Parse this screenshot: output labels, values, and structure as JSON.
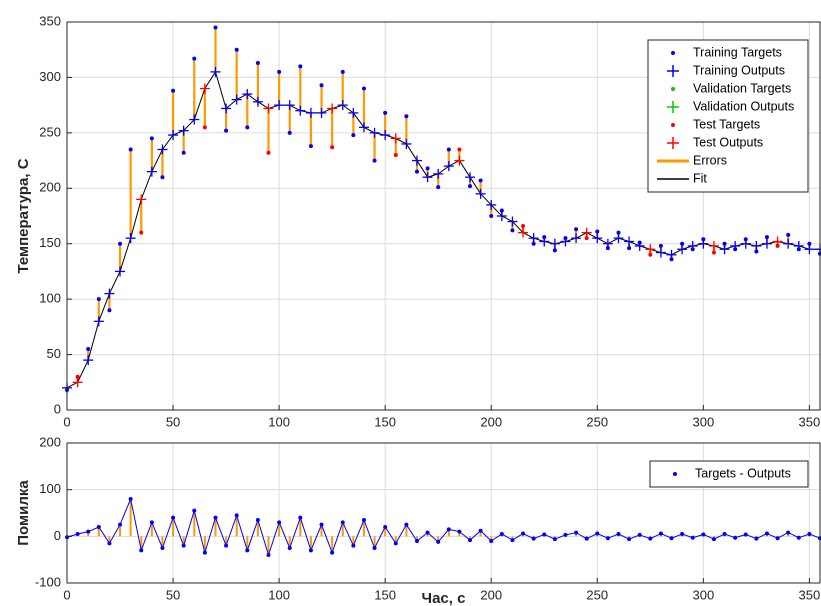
{
  "chart_data": [
    {
      "type": "scatter",
      "ylabel": "Температура, С",
      "x": [
        0,
        5,
        10,
        15,
        20,
        25,
        30,
        35,
        40,
        45,
        50,
        55,
        60,
        65,
        70,
        75,
        80,
        85,
        90,
        95,
        100,
        105,
        110,
        115,
        120,
        125,
        130,
        135,
        140,
        145,
        150,
        155,
        160,
        165,
        170,
        175,
        180,
        185,
        190,
        195,
        200,
        205,
        210,
        215,
        220,
        225,
        230,
        235,
        240,
        245,
        250,
        255,
        260,
        265,
        270,
        275,
        280,
        285,
        290,
        295,
        300,
        305,
        310,
        315,
        320,
        325,
        330,
        335,
        340,
        345,
        350,
        355
      ],
      "xlim": [
        0,
        355
      ],
      "xticks": [
        0,
        50,
        100,
        150,
        200,
        250,
        300,
        350
      ],
      "ylim": [
        0,
        350
      ],
      "yticks": [
        0,
        50,
        100,
        150,
        200,
        250,
        300,
        350
      ],
      "grid": true,
      "legend": "northeast",
      "series": [
        {
          "name": "Training Targets",
          "color": "#0000ff",
          "marker": ".",
          "values": [
            18,
            null,
            55,
            100,
            90,
            150,
            235,
            null,
            245,
            210,
            288,
            232,
            317,
            null,
            345,
            252,
            325,
            255,
            313,
            null,
            305,
            250,
            310,
            238,
            293,
            null,
            305,
            248,
            290,
            225,
            268,
            null,
            265,
            215,
            218,
            201,
            235,
            null,
            202,
            207,
            175,
            180,
            162,
            null,
            150,
            156,
            144,
            155,
            163,
            null,
            161,
            146,
            160,
            146,
            151,
            null,
            148,
            136,
            150,
            145,
            154,
            null,
            150,
            145,
            154,
            143,
            156,
            null,
            158,
            145,
            150,
            141
          ]
        },
        {
          "name": "Training Outputs",
          "color": "#0000ff",
          "marker": "+",
          "values": [
            20,
            null,
            45,
            80,
            105,
            125,
            155,
            null,
            215,
            235,
            248,
            252,
            262,
            null,
            305,
            272,
            280,
            285,
            278,
            null,
            275,
            275,
            270,
            268,
            268,
            null,
            275,
            268,
            255,
            250,
            248,
            null,
            240,
            225,
            210,
            213,
            220,
            null,
            210,
            195,
            185,
            175,
            170,
            null,
            155,
            152,
            150,
            152,
            155,
            null,
            155,
            150,
            155,
            152,
            148,
            null,
            142,
            140,
            145,
            148,
            150,
            null,
            145,
            148,
            150,
            148,
            150,
            null,
            150,
            148,
            145,
            145
          ]
        },
        {
          "name": "Validation Targets",
          "color": "#00cc00",
          "marker": ".",
          "values": [
            null,
            null,
            null,
            null,
            null,
            null,
            null,
            null,
            null,
            null,
            null,
            null,
            null,
            null,
            null,
            null,
            null,
            null,
            null,
            null,
            null,
            null,
            null,
            null,
            null,
            null,
            null,
            null,
            null,
            null,
            null,
            null,
            null,
            null,
            null,
            null,
            null,
            null,
            null,
            null,
            null,
            null,
            null,
            null,
            null,
            null,
            null,
            null,
            null,
            null,
            null,
            null,
            null,
            null,
            null,
            null,
            null,
            null,
            null,
            null,
            null,
            null,
            null,
            null,
            null,
            null,
            null,
            null,
            null,
            null,
            null,
            null
          ]
        },
        {
          "name": "Validation Outputs",
          "color": "#00cc00",
          "marker": "+",
          "values": [
            null,
            null,
            null,
            null,
            null,
            null,
            null,
            null,
            null,
            null,
            null,
            null,
            null,
            null,
            null,
            null,
            null,
            null,
            null,
            null,
            null,
            null,
            null,
            null,
            null,
            null,
            null,
            null,
            null,
            null,
            null,
            null,
            null,
            null,
            null,
            null,
            null,
            null,
            null,
            null,
            null,
            null,
            null,
            null,
            null,
            null,
            null,
            null,
            null,
            null,
            null,
            null,
            null,
            null,
            null,
            null,
            null,
            null,
            null,
            null,
            null,
            null,
            null,
            null,
            null,
            null,
            null,
            null,
            null,
            null,
            null,
            null
          ]
        },
        {
          "name": "Test Targets",
          "color": "#ff0000",
          "marker": ".",
          "values": [
            null,
            30,
            null,
            null,
            null,
            null,
            null,
            160,
            null,
            null,
            null,
            null,
            null,
            255,
            null,
            null,
            null,
            null,
            null,
            232,
            null,
            null,
            null,
            null,
            null,
            237,
            null,
            null,
            null,
            null,
            null,
            230,
            null,
            null,
            null,
            null,
            null,
            235,
            null,
            null,
            null,
            null,
            null,
            166,
            null,
            null,
            null,
            null,
            null,
            155,
            null,
            null,
            null,
            null,
            null,
            140,
            null,
            null,
            null,
            null,
            null,
            142,
            null,
            null,
            null,
            null,
            null,
            148,
            null,
            null,
            null,
            null
          ]
        },
        {
          "name": "Test Outputs",
          "color": "#ff0000",
          "marker": "+",
          "values": [
            null,
            25,
            null,
            null,
            null,
            null,
            null,
            190,
            null,
            null,
            null,
            null,
            null,
            290,
            null,
            null,
            null,
            null,
            null,
            272,
            null,
            null,
            null,
            null,
            null,
            272,
            null,
            null,
            null,
            null,
            null,
            245,
            null,
            null,
            null,
            null,
            null,
            225,
            null,
            null,
            null,
            null,
            null,
            160,
            null,
            null,
            null,
            null,
            null,
            160,
            null,
            null,
            null,
            null,
            null,
            145,
            null,
            null,
            null,
            null,
            null,
            148,
            null,
            null,
            null,
            null,
            null,
            152,
            null,
            null,
            null,
            null
          ]
        },
        {
          "name": "Errors",
          "color": "#ff9900",
          "marker": "|"
        },
        {
          "name": "Fit",
          "color": "#000000",
          "marker": "-"
        }
      ]
    },
    {
      "type": "stem",
      "xlabel": "Час, с",
      "ylabel": "Помилка",
      "x": [
        0,
        5,
        10,
        15,
        20,
        25,
        30,
        35,
        40,
        45,
        50,
        55,
        60,
        65,
        70,
        75,
        80,
        85,
        90,
        95,
        100,
        105,
        110,
        115,
        120,
        125,
        130,
        135,
        140,
        145,
        150,
        155,
        160,
        165,
        170,
        175,
        180,
        185,
        190,
        195,
        200,
        205,
        210,
        215,
        220,
        225,
        230,
        235,
        240,
        245,
        250,
        255,
        260,
        265,
        270,
        275,
        280,
        285,
        290,
        295,
        300,
        305,
        310,
        315,
        320,
        325,
        330,
        335,
        340,
        345,
        350,
        355
      ],
      "xlim": [
        0,
        355
      ],
      "xticks": [
        0,
        50,
        100,
        150,
        200,
        250,
        300,
        350
      ],
      "ylim": [
        -100,
        200
      ],
      "yticks": [
        -100,
        0,
        100,
        200
      ],
      "grid": true,
      "legend": "northeast",
      "series": [
        {
          "name": "Targets - Outputs",
          "color": "#0000ff",
          "marker": ".",
          "stem_color": "#ff9900",
          "values": [
            -2,
            5,
            10,
            20,
            -15,
            25,
            80,
            -30,
            30,
            -25,
            40,
            -20,
            55,
            -35,
            40,
            -20,
            45,
            -30,
            35,
            -40,
            30,
            -25,
            40,
            -30,
            25,
            -35,
            30,
            -20,
            35,
            -25,
            20,
            -15,
            25,
            -10,
            8,
            -12,
            15,
            10,
            -8,
            12,
            -10,
            5,
            -8,
            6,
            -5,
            4,
            -6,
            3,
            8,
            -5,
            6,
            -4,
            5,
            -6,
            3,
            -5,
            6,
            -4,
            5,
            -3,
            4,
            -6,
            5,
            -3,
            4,
            -5,
            6,
            -4,
            8,
            -3,
            5,
            -4
          ]
        }
      ]
    }
  ]
}
